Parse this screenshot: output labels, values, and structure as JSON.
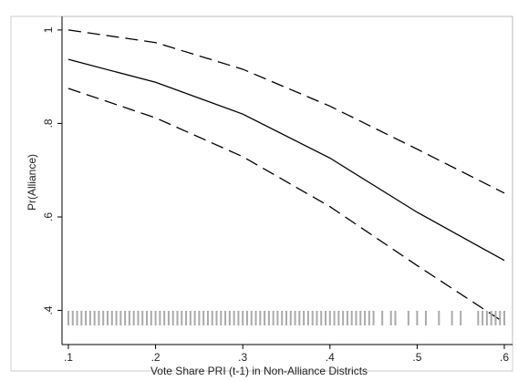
{
  "chart_data": {
    "type": "line",
    "xlabel": "Vote Share PRI (t-1) in Non-Alliance Districts",
    "ylabel": "Pr(Alliance)",
    "x": [
      0.1,
      0.2,
      0.3,
      0.4,
      0.5,
      0.6
    ],
    "series": [
      {
        "color": "#000000",
        "style": "dashed",
        "values": [
          1.0,
          0.973,
          0.916,
          0.837,
          0.745,
          0.651
        ]
      },
      {
        "color": "#000000",
        "style": "solid",
        "values": [
          0.937,
          0.888,
          0.82,
          0.726,
          0.61,
          0.507
        ]
      },
      {
        "color": "#000000",
        "style": "dashed",
        "values": [
          0.875,
          0.812,
          0.729,
          0.622,
          0.496,
          0.374
        ]
      }
    ],
    "rug": {
      "color": "#aaaaaa",
      "x": [
        0.1,
        0.105,
        0.11,
        0.115,
        0.12,
        0.125,
        0.13,
        0.135,
        0.14,
        0.145,
        0.15,
        0.155,
        0.16,
        0.165,
        0.17,
        0.175,
        0.18,
        0.185,
        0.19,
        0.195,
        0.2,
        0.205,
        0.21,
        0.215,
        0.22,
        0.225,
        0.23,
        0.235,
        0.24,
        0.245,
        0.25,
        0.255,
        0.26,
        0.265,
        0.27,
        0.275,
        0.28,
        0.285,
        0.29,
        0.295,
        0.3,
        0.305,
        0.31,
        0.315,
        0.32,
        0.325,
        0.33,
        0.335,
        0.34,
        0.345,
        0.35,
        0.355,
        0.36,
        0.365,
        0.37,
        0.375,
        0.38,
        0.385,
        0.39,
        0.395,
        0.4,
        0.405,
        0.41,
        0.415,
        0.42,
        0.425,
        0.43,
        0.435,
        0.44,
        0.445,
        0.45,
        0.46,
        0.47,
        0.475,
        0.49,
        0.5,
        0.51,
        0.525,
        0.54,
        0.55,
        0.57,
        0.575,
        0.58,
        0.585,
        0.59,
        0.595,
        0.6
      ]
    },
    "xlim": [
      0.0927,
      0.6094
    ],
    "ylim": [
      0.327,
      1.029
    ],
    "xticks": [
      {
        "value": 0.1,
        "label": ".1"
      },
      {
        "value": 0.2,
        "label": ".2"
      },
      {
        "value": 0.3,
        "label": ".3"
      },
      {
        "value": 0.4,
        "label": ".4"
      },
      {
        "value": 0.5,
        "label": ".5"
      },
      {
        "value": 0.6,
        "label": ".6"
      }
    ],
    "yticks": [
      {
        "value": 0.4,
        "label": ".4"
      },
      {
        "value": 0.6,
        "label": ".6"
      },
      {
        "value": 0.8,
        "label": ".8"
      },
      1
    ],
    "grid": false
  }
}
